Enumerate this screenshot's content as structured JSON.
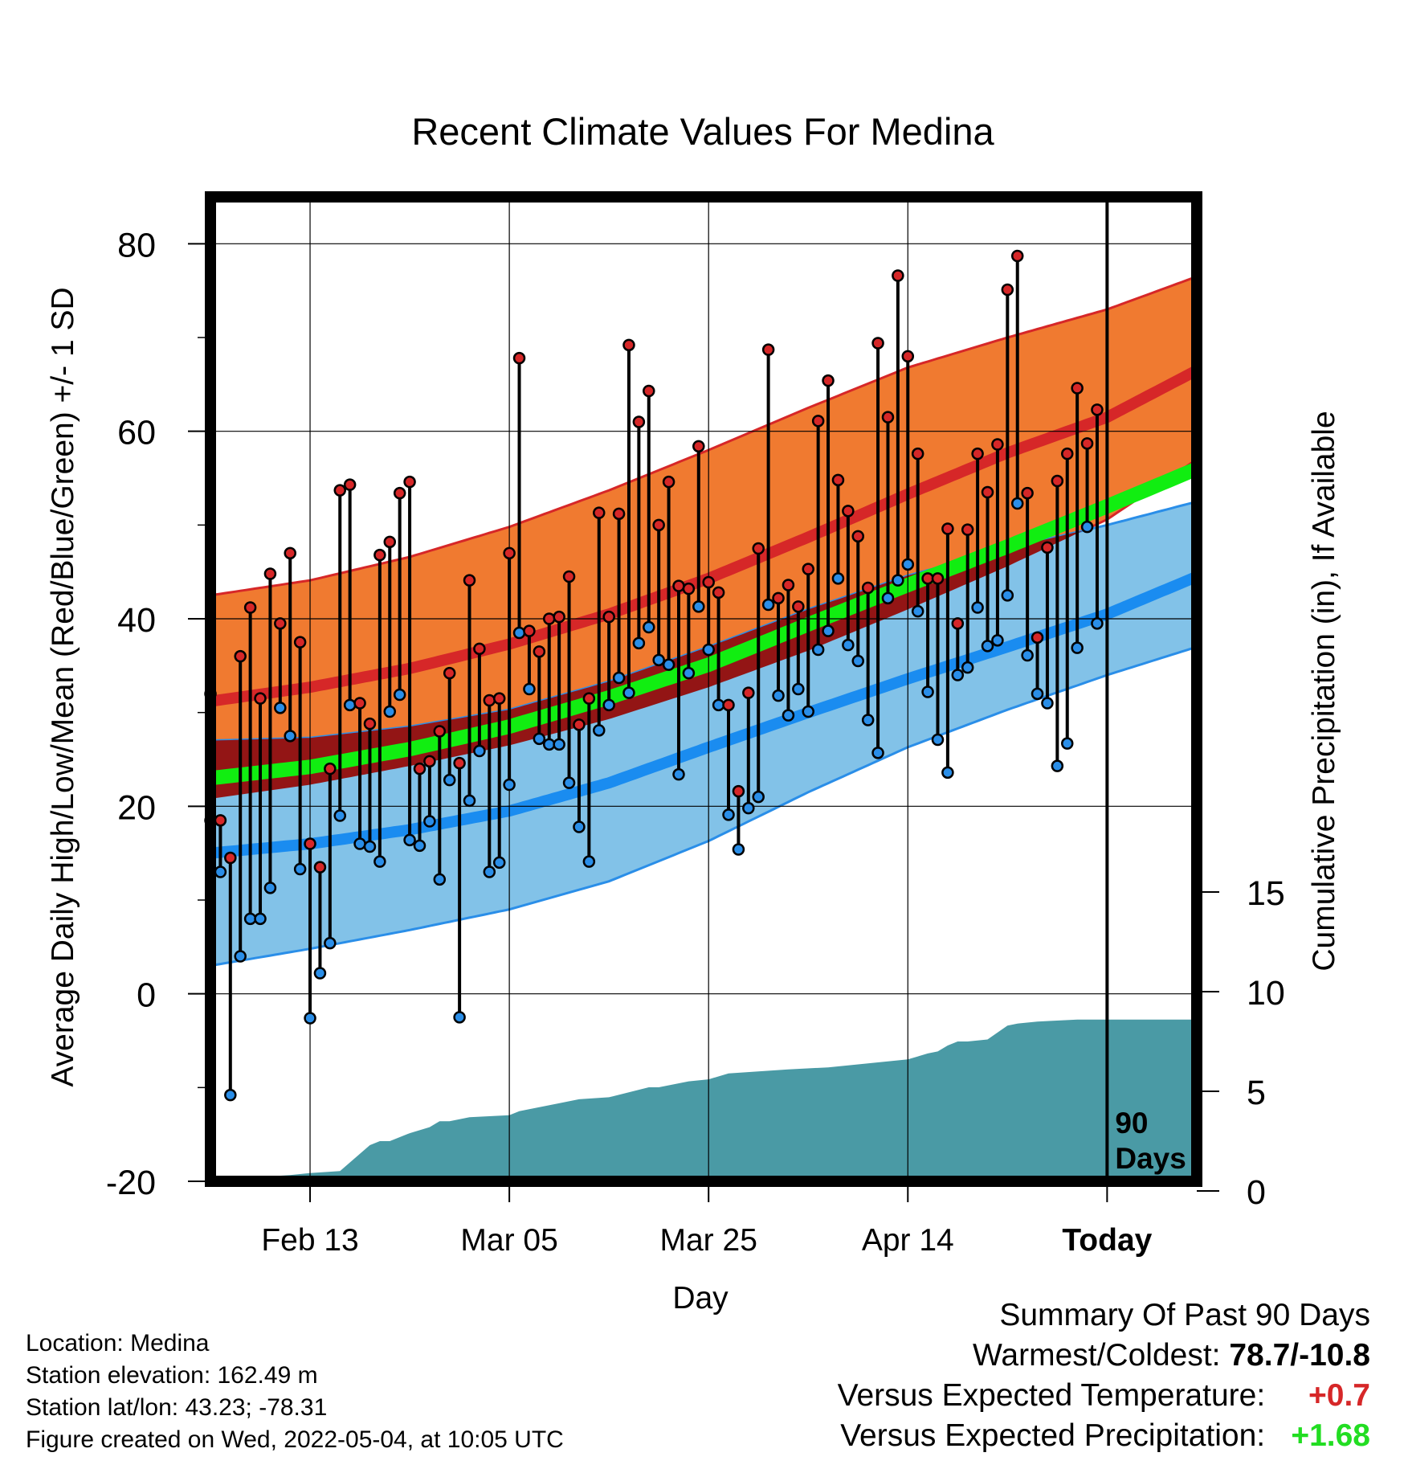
{
  "chart_data": {
    "type": "line",
    "title": "Recent Climate Values For Medina",
    "xlabel": "Day",
    "ylabel": "Average Daily High/Low/Mean (Red/Blue/Green) +/- 1 SD",
    "y2label": "Cumulative Precipitation (in), If Available",
    "x_tick_labels": [
      "Feb 13",
      "Mar 05",
      "Mar 25",
      "Apr 14",
      "Today"
    ],
    "x_tick_days": [
      -80,
      -60,
      -40,
      -20,
      0
    ],
    "xlim_days": [
      -90,
      9
    ],
    "ylim": [
      -20,
      85
    ],
    "y_ticks": [
      -20,
      0,
      20,
      40,
      60,
      80
    ],
    "y2lim": [
      0,
      18
    ],
    "y2_ticks": [
      0,
      5,
      10,
      15
    ],
    "grid": true,
    "marker_label": "90 Days",
    "colors": {
      "high_band": "#f07a30",
      "high_band_edge": "#d62728",
      "high_mean": "#d62728",
      "low_band": "#82c2e8",
      "low_band_edge": "#2a8ee8",
      "low_mean": "#1a8cf0",
      "overlap": "#931515",
      "mean": "#11ee11",
      "precip": "#4a9aa5",
      "high_dot": "#d62728",
      "low_dot": "#2a8ee8"
    },
    "normals": {
      "days": [
        -90,
        -80,
        -70,
        -60,
        -50,
        -40,
        -30,
        -20,
        -10,
        0,
        9
      ],
      "high_mean": [
        31.2,
        32.7,
        34.7,
        37.3,
        40.5,
        44.3,
        48.7,
        53.3,
        57.7,
        61.5,
        66.5
      ],
      "high_upper": [
        42.5,
        44.1,
        46.6,
        49.8,
        53.7,
        58.0,
        62.5,
        66.8,
        70.0,
        73.0,
        76.5
      ],
      "high_lower": [
        20.8,
        22.3,
        24.3,
        26.5,
        29.3,
        32.7,
        36.6,
        41.0,
        45.6,
        50.6,
        57.0
      ],
      "low_mean": [
        15.0,
        16.0,
        17.5,
        19.5,
        22.5,
        26.3,
        30.0,
        33.6,
        37.0,
        40.5,
        44.5
      ],
      "low_upper": [
        27.0,
        27.3,
        28.5,
        30.3,
        33.3,
        37.0,
        41.0,
        44.6,
        47.5,
        50.0,
        52.5
      ],
      "low_lower": [
        3.0,
        4.8,
        6.8,
        9.0,
        12.0,
        16.3,
        21.5,
        26.3,
        30.3,
        34.0,
        37.0
      ],
      "mean": [
        23.0,
        24.2,
        26.1,
        28.5,
        31.6,
        35.1,
        39.4,
        43.6,
        47.7,
        52.0,
        56.0
      ]
    },
    "series": [
      {
        "name": "High",
        "start_day": -90,
        "values": [
          32,
          18.5,
          14.5,
          36,
          41.2,
          31.5,
          44.8,
          39.5,
          47,
          37.5,
          16,
          13.5,
          24,
          53.7,
          54.3,
          31,
          28.8,
          46.8,
          48.2,
          53.4,
          54.6,
          24,
          24.8,
          28,
          34.2,
          24.6,
          44.1,
          36.8,
          31.3,
          31.5,
          47,
          67.8,
          38.7,
          36.5,
          40,
          40.2,
          44.5,
          28.7,
          31.5,
          51.3,
          40.2,
          51.2,
          69.2,
          61,
          64.3,
          50,
          54.6,
          43.5,
          43.2,
          58.4,
          43.9,
          42.8,
          30.8,
          21.6,
          32.1,
          47.5,
          68.7,
          42.2,
          43.6,
          41.3,
          45.3,
          61.1,
          65.4,
          54.8,
          51.5,
          48.8,
          43.3,
          69.4,
          61.5,
          76.6,
          68,
          57.6,
          44.3,
          44.3,
          49.6,
          39.5,
          49.5,
          57.6,
          53.5,
          58.6,
          75.1,
          78.7,
          53.4,
          38,
          47.6,
          54.7,
          57.6,
          64.6,
          58.7,
          62.3
        ]
      },
      {
        "name": "Low",
        "start_day": -90,
        "values": [
          18.5,
          13,
          -10.8,
          4,
          8,
          8,
          11.3,
          30.5,
          27.5,
          13.3,
          -2.6,
          2.2,
          5.4,
          19,
          30.8,
          16,
          15.7,
          14.1,
          30.1,
          31.9,
          16.4,
          15.8,
          18.4,
          12.2,
          22.8,
          -2.5,
          20.6,
          25.9,
          13,
          14,
          22.3,
          38.5,
          32.5,
          27.2,
          26.6,
          26.6,
          22.5,
          17.8,
          14.1,
          28.1,
          30.8,
          33.7,
          32.1,
          37.4,
          39.1,
          35.6,
          35.1,
          23.4,
          34.2,
          41.3,
          36.7,
          30.8,
          19.1,
          15.4,
          19.8,
          21,
          41.5,
          31.8,
          29.7,
          32.5,
          30.1,
          36.7,
          38.7,
          44.3,
          37.2,
          35.5,
          29.2,
          25.7,
          42.2,
          44.1,
          45.8,
          40.8,
          32.2,
          27.1,
          23.6,
          34,
          34.8,
          41.2,
          37.1,
          37.7,
          42.5,
          52.3,
          36.1,
          32,
          31,
          24.3,
          26.7,
          36.9,
          49.8,
          39.5
        ]
      }
    ],
    "precip": {
      "days": [
        -90,
        -89,
        -88,
        -85,
        -82,
        -80,
        -77,
        -74,
        -73,
        -72,
        -70,
        -68,
        -67,
        -66,
        -65,
        -64,
        -60,
        -59,
        -58,
        -55,
        -53,
        -50,
        -46,
        -45,
        -42,
        -40,
        -38,
        -35,
        -32,
        -28,
        -24,
        -20,
        -18,
        -17,
        -16,
        -15,
        -14,
        -12,
        -10,
        -9,
        -7,
        -3,
        0,
        9
      ],
      "values": [
        0.3,
        0.6,
        0.7,
        0.7,
        0.8,
        0.9,
        1.0,
        2.3,
        2.5,
        2.5,
        2.9,
        3.2,
        3.5,
        3.5,
        3.6,
        3.7,
        3.8,
        4.0,
        4.1,
        4.4,
        4.6,
        4.7,
        5.2,
        5.2,
        5.5,
        5.6,
        5.9,
        6.0,
        6.1,
        6.2,
        6.4,
        6.6,
        6.9,
        7.0,
        7.3,
        7.5,
        7.5,
        7.6,
        8.3,
        8.4,
        8.5,
        8.6,
        8.6,
        8.6
      ]
    }
  },
  "info": {
    "location": "Location: Medina",
    "elevation": "Station elevation: 162.49 m",
    "latlon": "Station lat/lon: 43.23; -78.31",
    "created": "Figure created on Wed, 2022-05-04, at 10:05 UTC"
  },
  "summary": {
    "title": "Summary Of Past 90 Days",
    "warm_cold_label": "Warmest/Coldest:",
    "warm_cold_value": "78.7/-10.8",
    "temp_label": "Versus Expected Temperature:",
    "temp_value": "+0.7",
    "precip_label": "Versus Expected Precipitation:",
    "precip_value": "+1.68"
  }
}
